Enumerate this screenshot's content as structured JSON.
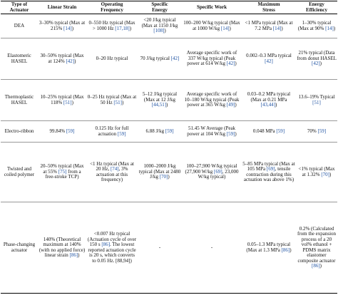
{
  "headers": [
    {
      "line1": "Type of",
      "line2": "Actuator"
    },
    {
      "line1": "Linear Strain",
      "line2": ""
    },
    {
      "line1": "Operating",
      "line2": "Frequency"
    },
    {
      "line1": "Specific",
      "line2": "Energy"
    },
    {
      "line1": "Specific Work",
      "line2": ""
    },
    {
      "line1": "Maximum",
      "line2": "Stress"
    },
    {
      "line1": "Energy",
      "line2": "Efficiency"
    }
  ],
  "rows": [
    {
      "name": "DEA",
      "cells": [
        {
          "text": "3–30% typical (Max at 215%",
          "refs": "[14]",
          "tail": ")"
        },
        {
          "text": "0–550 Hz typical (Max > 1000 Hz",
          "refs": "[17,18]",
          "tail": ")"
        },
        {
          "text": "<20 J/kg typical (Max at 1150 J/kg",
          "refs": "[108]",
          "tail": ")"
        },
        {
          "text": "100–200 W/kg typical (Max at 1000 W/kg",
          "refs": "[14]",
          "tail": ")"
        },
        {
          "text": "<1 MPa typical (Max at 7.2 MPa",
          "refs": "[14]",
          "tail": ")"
        },
        {
          "text": "1–30% typical (Max at 90%",
          "refs": "[14]",
          "tail": ")"
        }
      ]
    },
    {
      "name": "Elastomeric HASEL",
      "cells": [
        {
          "text": "30–50% typical (Max at 124%",
          "refs": "[42]",
          "tail": ")"
        },
        {
          "text": "0–20 Hz typical",
          "refs": "",
          "tail": ""
        },
        {
          "text": "70 J/kg typical",
          "refs": "[42]",
          "tail": ""
        },
        {
          "text": "Average specific work of 337 W/kg typical (Peak power at 614 W/kg",
          "refs": "[42]",
          "tail": ")"
        },
        {
          "text": "0.002–0.3 MPa typical",
          "refs": "[42]",
          "tail": ""
        },
        {
          "text": "21% typical (Data from donut HASEL",
          "refs": "[42]",
          "tail": ")"
        }
      ]
    },
    {
      "name": "Thermoplastic HASEL",
      "cells": [
        {
          "text": "10–25% typical (Max 118%",
          "refs": "[51]",
          "tail": ")"
        },
        {
          "text": "0–25 Hz typical (Max at 50 Hz",
          "refs": "[51]",
          "tail": ")"
        },
        {
          "text": "5–12 J/kg typical (Max at 12 J/kg",
          "refs": "[44,51]",
          "tail": ")"
        },
        {
          "text": "Average specific work of 10–180 W/kg typical (Peak power at 365 W/kg",
          "refs": "[49]",
          "tail": ")"
        },
        {
          "text": "0.03–0.2 MPa typical (Max at 0.21 MPa",
          "refs": "[43,44]",
          "tail": ")"
        },
        {
          "text": "13.6–19% Typical",
          "refs": "[51]",
          "tail": ""
        }
      ]
    },
    {
      "name": "Electro-ribbon",
      "cells": [
        {
          "text": "99.84%",
          "refs": "[59]",
          "tail": ""
        },
        {
          "text": "0.125 Hz for full actuation",
          "refs": "[59]",
          "tail": ""
        },
        {
          "text": "6.88 J/kg",
          "refs": "[59]",
          "tail": ""
        },
        {
          "text": "51.45 W Average (Peak power at 104 W/kg",
          "refs": "[59]",
          "tail": ")"
        },
        {
          "text": "0.048 MPa",
          "refs": "[59]",
          "tail": ""
        },
        {
          "text": "70%",
          "refs": "[59]",
          "tail": ""
        }
      ]
    },
    {
      "name": "Twisted and coiled polymer",
      "cells": [
        {
          "text": "20–50% typical (Max at 55%",
          "refs": "[75]",
          "tail": " from a free-stroke TCP)"
        },
        {
          "text": "<1 Hz typical (Max at 20 Hz,",
          "refs": "[74]",
          "tail": ", 3% actuation at this frequency)"
        },
        {
          "text": "1000–2000 J/kg typical (Max at 2480 J/kg",
          "refs": "[70]",
          "tail": ")"
        },
        {
          "text": "100–27,900 W/kg typical (27,900 W/kg",
          "refs": "[69]",
          "tail": ", 23,000 W/kg typical)"
        },
        {
          "text": "5–85 MPa typical (Max at 105 MPa",
          "refs": "[69]",
          "tail": ", tensile contraction during this actuation was above 1%)"
        },
        {
          "text": "<1% typical (Max at 1.32%",
          "refs": "[70]",
          "tail": ")"
        }
      ]
    },
    {
      "name": "Phase-changing actuator",
      "cells": [
        {
          "text": "140% (Theoretical maximum at 140% (with no applied force) linear strain",
          "refs": "[86]",
          "tail": ")"
        },
        {
          "text": "<0.007 Hz typical (Actuation cycle of over 150 s",
          "refs": "[86]",
          "tail": ". The lowest reported actuation cycle is 20 s, which converts to 0.05 Hz. [88,94])"
        },
        {
          "text": "-",
          "refs": "",
          "tail": ""
        },
        {
          "text": "-",
          "refs": "",
          "tail": ""
        },
        {
          "text": "0.05–1.3 MPa typical (Max at 1.3 MPa",
          "refs": "[86]",
          "tail": ")"
        },
        {
          "text": "0.2% (Calculated from the expansion process of a 20 vol% ethanol + PDMS matrix elastomer composite actuator",
          "refs": "[86]",
          "tail": ")"
        }
      ]
    }
  ]
}
